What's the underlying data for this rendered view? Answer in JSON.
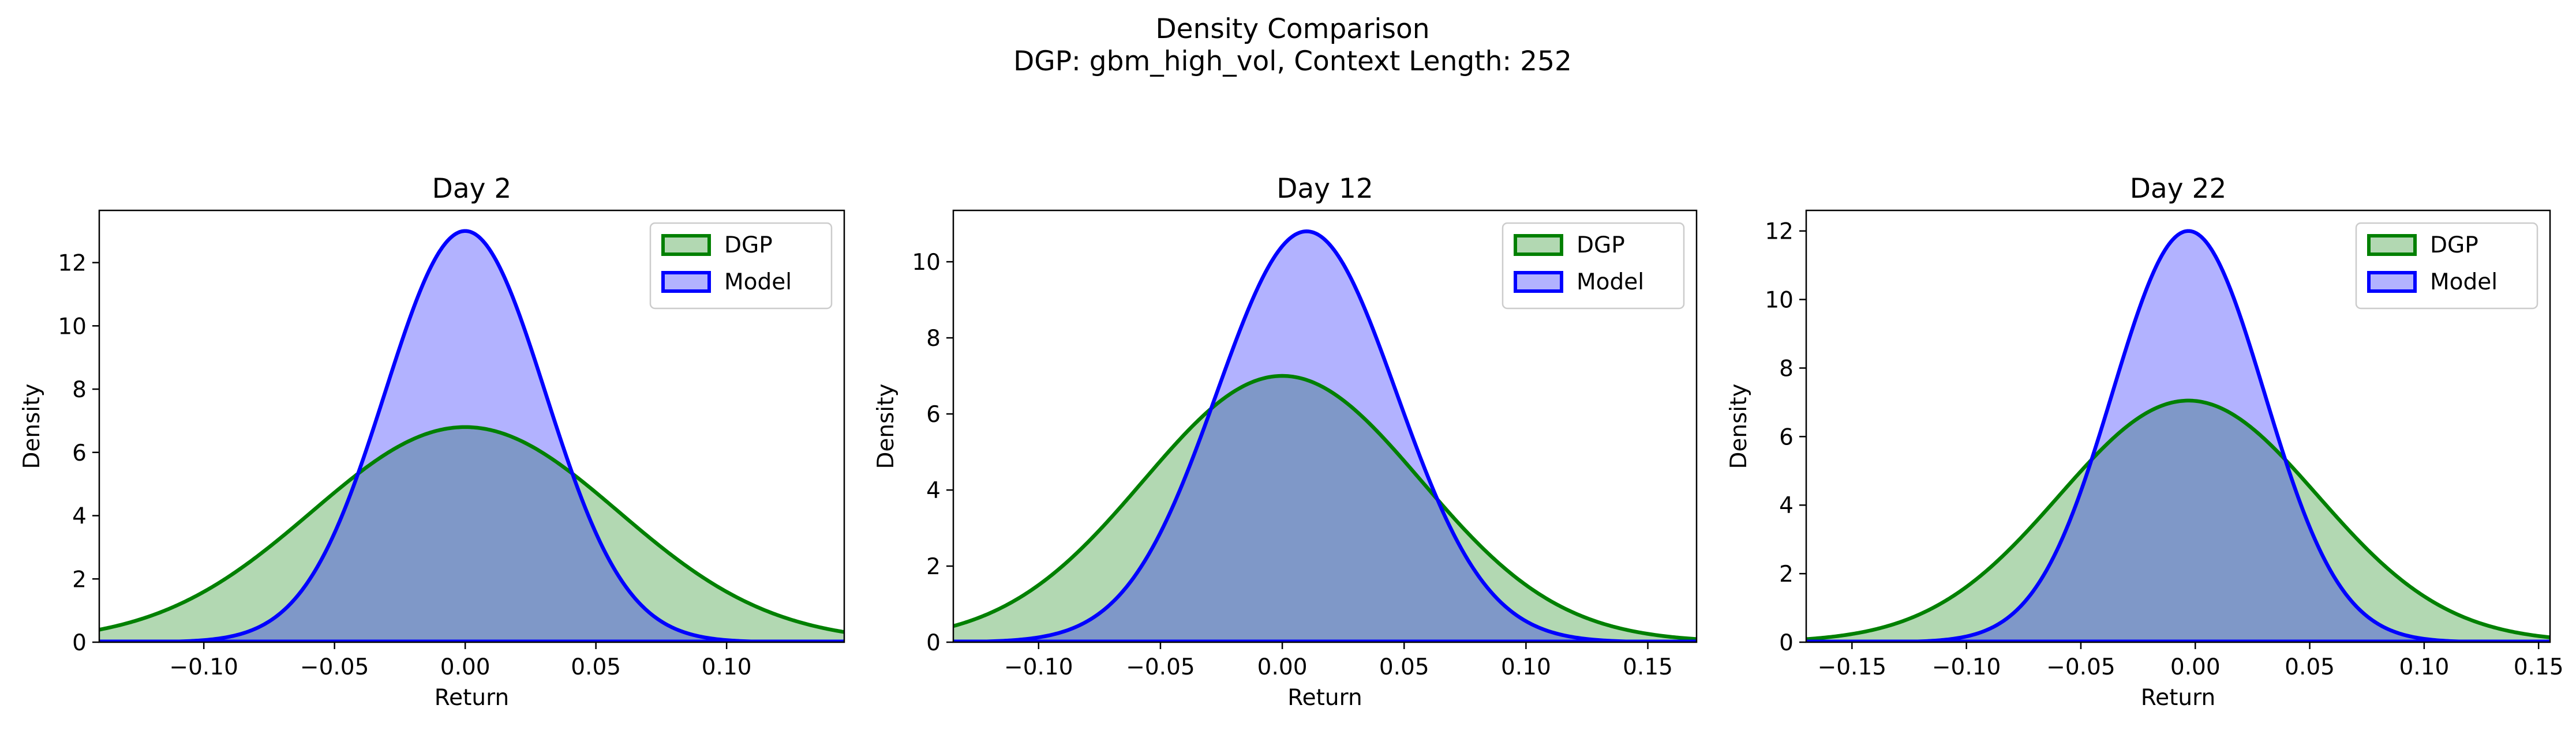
{
  "figure": {
    "title_line1": "Density Comparison",
    "title_line2": "DGP: gbm_high_vol, Context Length: 252"
  },
  "colors": {
    "dgp_line": "#008000",
    "dgp_fill": "#b2d8b2",
    "model_line": "#0000ff",
    "model_fill": "#b2b2ff",
    "overlap_fill": "#7f98c8"
  },
  "chart_data": [
    {
      "type": "area",
      "title": "Day 2",
      "xlabel": "Return",
      "ylabel": "Density",
      "xlim": [
        -0.14,
        0.145
      ],
      "ylim": [
        0,
        13.65
      ],
      "xticks": [
        -0.1,
        -0.05,
        0.0,
        0.05,
        0.1
      ],
      "xtick_labels": [
        "−0.10",
        "−0.05",
        "0.00",
        "0.05",
        "0.10"
      ],
      "yticks": [
        0,
        2,
        4,
        6,
        8,
        10,
        12
      ],
      "legend": "top-right",
      "series": [
        {
          "name": "DGP",
          "mean": 0.0,
          "sd": 0.0587,
          "peak": 6.8
        },
        {
          "name": "Model",
          "mean": 0.0,
          "sd": 0.0307,
          "peak": 13.0
        }
      ]
    },
    {
      "type": "area",
      "title": "Day 12",
      "xlabel": "Return",
      "ylabel": "Density",
      "xlim": [
        -0.135,
        0.17
      ],
      "ylim": [
        0,
        11.35
      ],
      "xticks": [
        -0.1,
        -0.05,
        0.0,
        0.05,
        0.1,
        0.15
      ],
      "xtick_labels": [
        "−0.10",
        "−0.05",
        "0.00",
        "0.05",
        "0.10",
        "0.15"
      ],
      "yticks": [
        0,
        2,
        4,
        6,
        8,
        10
      ],
      "legend": "top-right",
      "series": [
        {
          "name": "DGP",
          "mean": 0.0,
          "sd": 0.057,
          "peak": 7.0
        },
        {
          "name": "Model",
          "mean": 0.01,
          "sd": 0.0369,
          "peak": 10.8
        }
      ]
    },
    {
      "type": "area",
      "title": "Day 22",
      "xlabel": "Return",
      "ylabel": "Density",
      "xlim": [
        -0.17,
        0.155
      ],
      "ylim": [
        0,
        12.6
      ],
      "xticks": [
        -0.15,
        -0.1,
        -0.05,
        0.0,
        0.05,
        0.1,
        0.15
      ],
      "xtick_labels": [
        "−0.15",
        "−0.10",
        "−0.05",
        "0.00",
        "0.05",
        "0.10",
        "0.15"
      ],
      "yticks": [
        0,
        2,
        4,
        6,
        8,
        10,
        12
      ],
      "legend": "top-right",
      "series": [
        {
          "name": "DGP",
          "mean": -0.003,
          "sd": 0.0565,
          "peak": 7.05
        },
        {
          "name": "Model",
          "mean": -0.003,
          "sd": 0.0332,
          "peak": 12.0
        }
      ]
    }
  ]
}
